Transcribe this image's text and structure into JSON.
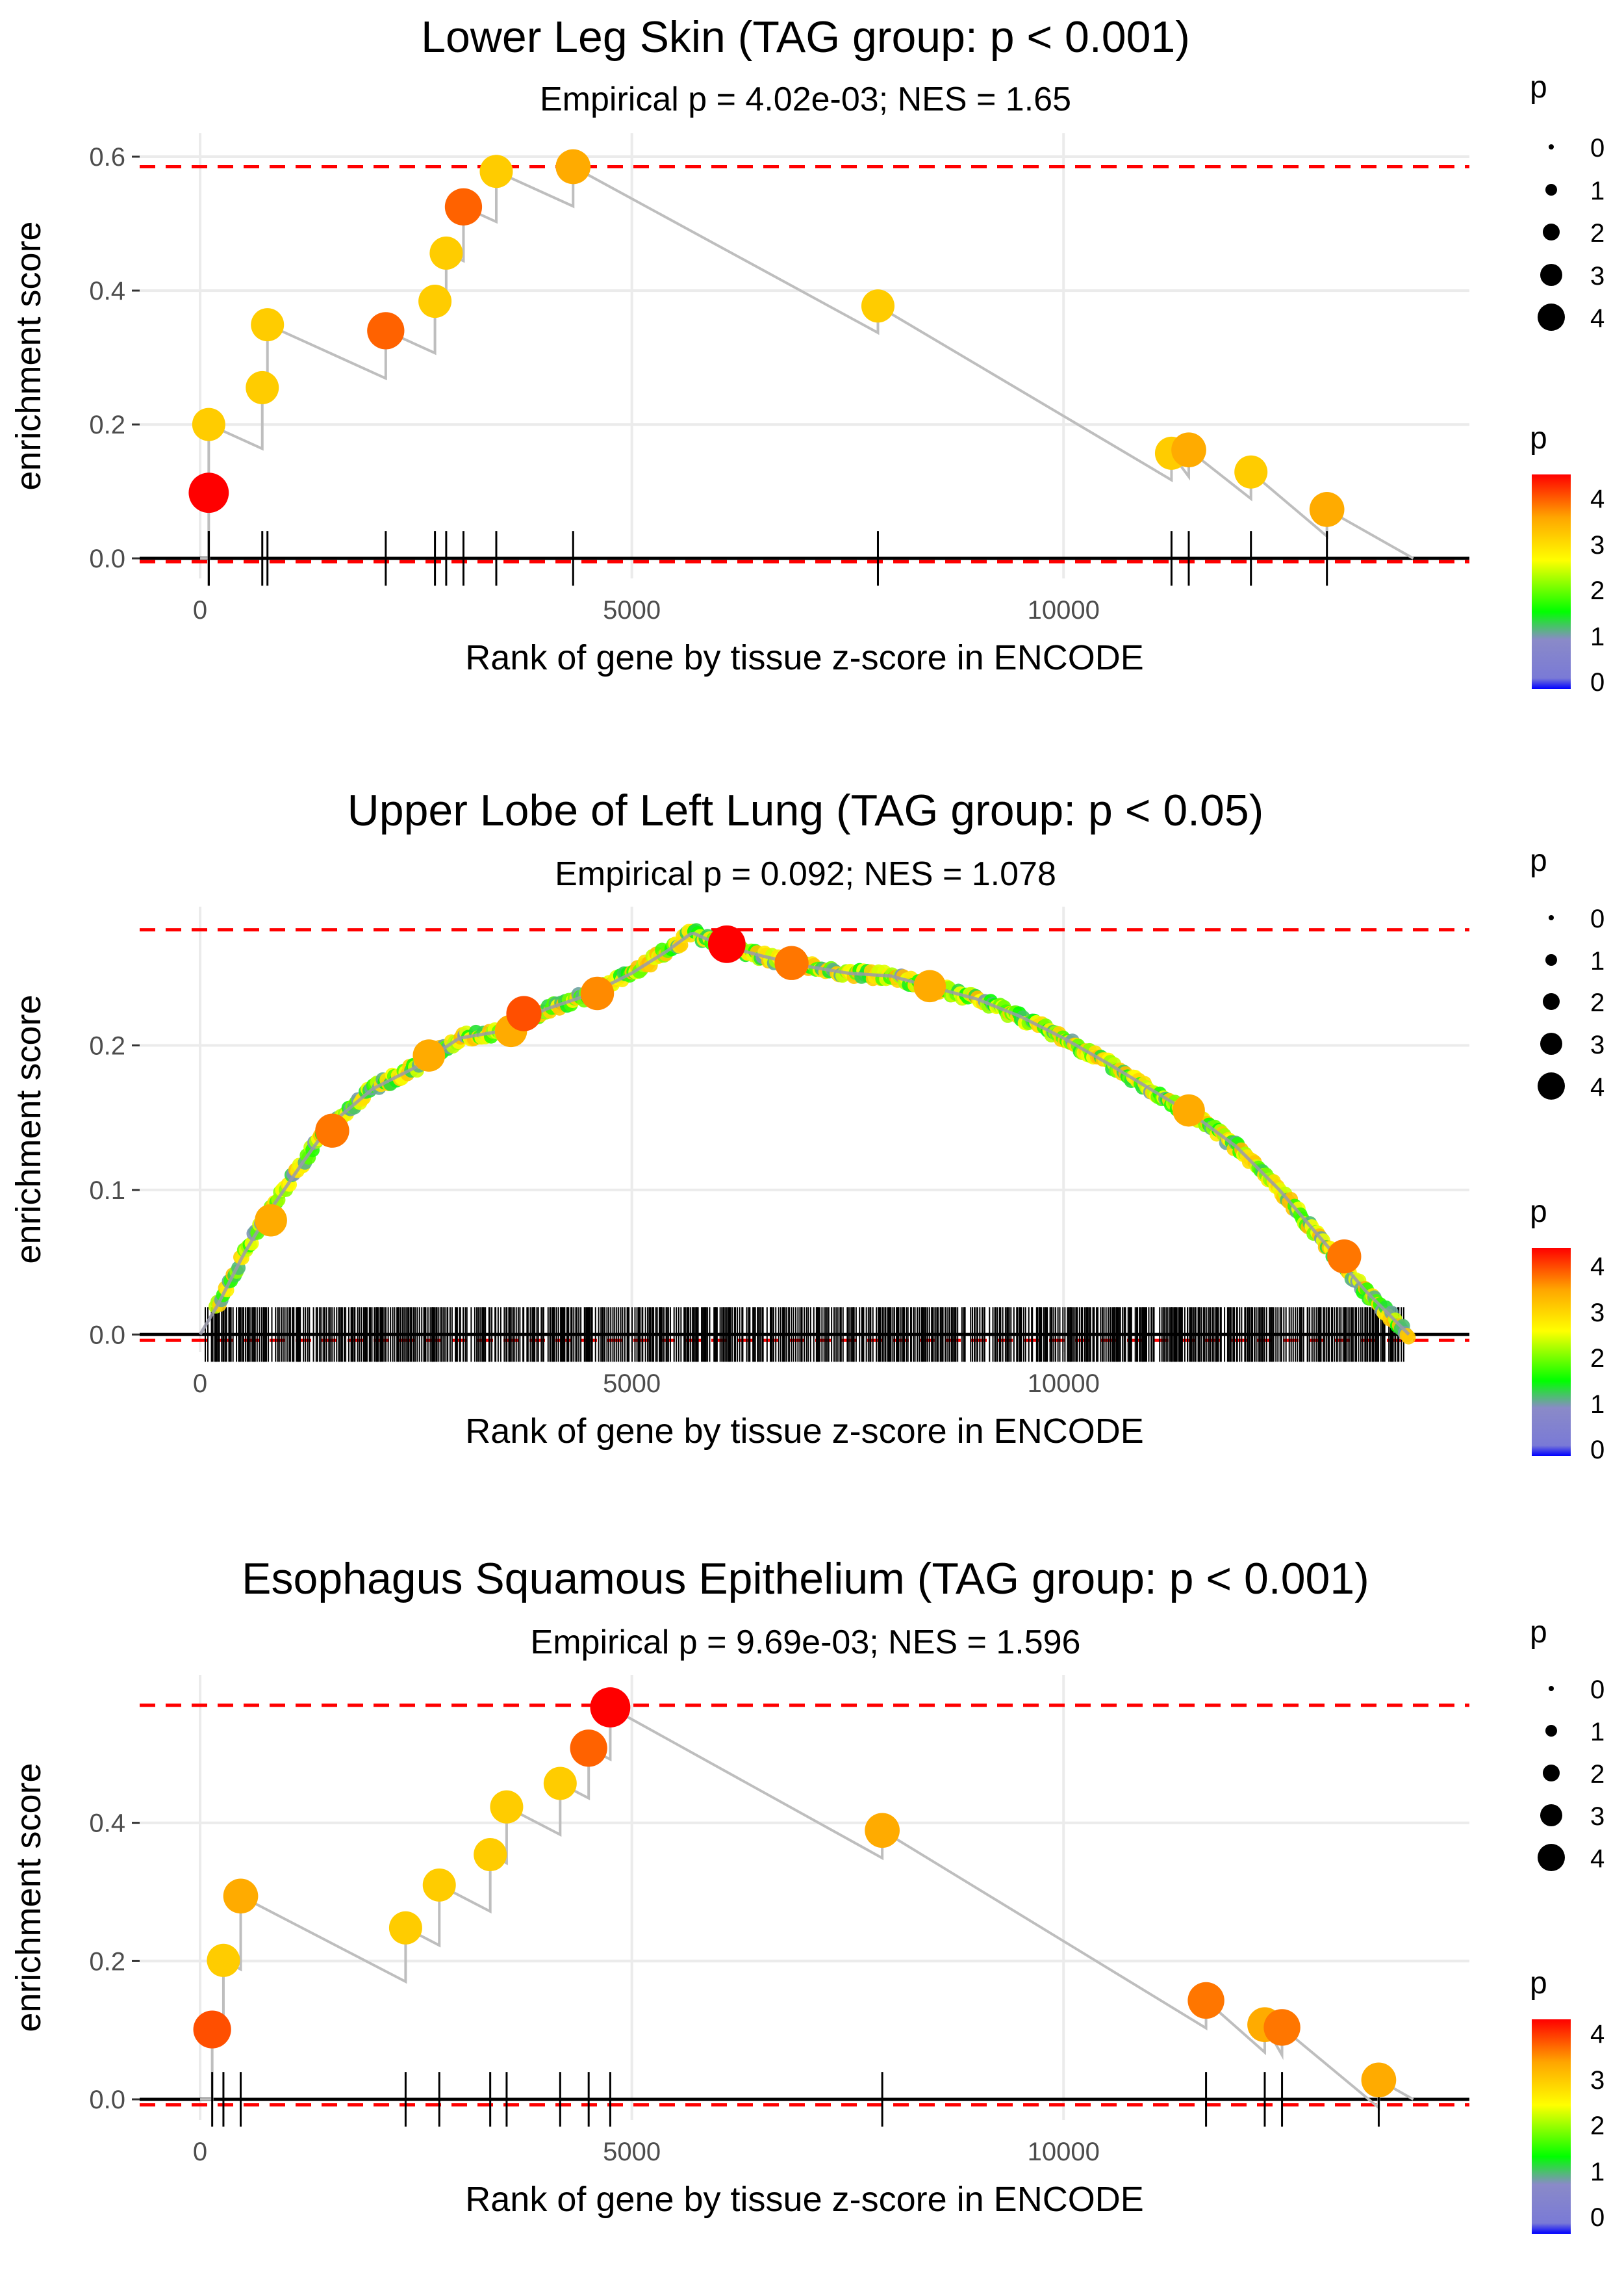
{
  "panels": [
    {
      "title": "Lower Leg Skin (TAG group: p < 0.001)",
      "subtitle": "Empirical p = 4.02e-03; NES = 1.65"
    },
    {
      "title": "Upper Lobe of Left Lung (TAG group: p < 0.05)",
      "subtitle": "Empirical p = 0.092; NES = 1.078"
    },
    {
      "title": "Esophagus Squamous Epithelium (TAG group: p < 0.001)",
      "subtitle": "Empirical p = 9.69e-03; NES = 1.596"
    }
  ],
  "legend": {
    "size_title": "p",
    "size_labels": [
      "0",
      "1",
      "2",
      "3",
      "4"
    ],
    "color_title": "p",
    "color_labels": [
      "4",
      "3",
      "2",
      "1",
      "0"
    ],
    "gradient_colors": [
      "#0000ff",
      "#8a8ac8",
      "#00ff00",
      "#ffff00",
      "#ffa500",
      "#ff0000"
    ]
  },
  "colors": {
    "curve": "#bebebe",
    "max_line": "#ff0000",
    "axis": "#000000",
    "grid": "#ebebeb"
  },
  "chart_data": [
    {
      "type": "scatter",
      "title": "Lower Leg Skin (TAG group: p < 0.001)",
      "subtitle": "Empirical p = 4.02e-03; NES = 1.65",
      "xlabel": "Rank of gene by tissue z-score in ENCODE",
      "ylabel": "enrichment score",
      "xlim": [
        -700,
        14700
      ],
      "ylim": [
        -0.03,
        0.635
      ],
      "x_ticks": [
        0,
        5000,
        10000
      ],
      "x_tick_labels": [
        "0",
        "5000",
        "10000"
      ],
      "y_ticks": [
        0,
        0.2,
        0.4,
        0.6
      ],
      "y_tick_labels": [
        "0.0",
        "0.2",
        "0.4",
        "0.6"
      ],
      "max_es": 0.585,
      "min_es": -0.005,
      "x_end": 14050,
      "points": [
        {
          "x": 100,
          "y": 0.098,
          "p": 4.2
        },
        {
          "x": 100,
          "y": 0.2,
          "p": 3.0
        },
        {
          "x": 720,
          "y": 0.255,
          "p": 3.0
        },
        {
          "x": 780,
          "y": 0.349,
          "p": 3.0
        },
        {
          "x": 2150,
          "y": 0.34,
          "p": 3.7
        },
        {
          "x": 2720,
          "y": 0.384,
          "p": 3.0
        },
        {
          "x": 2850,
          "y": 0.456,
          "p": 3.0
        },
        {
          "x": 3050,
          "y": 0.525,
          "p": 3.7
        },
        {
          "x": 3430,
          "y": 0.578,
          "p": 3.0
        },
        {
          "x": 4320,
          "y": 0.585,
          "p": 3.3
        },
        {
          "x": 7850,
          "y": 0.377,
          "p": 3.0
        },
        {
          "x": 11250,
          "y": 0.157,
          "p": 3.0
        },
        {
          "x": 11450,
          "y": 0.162,
          "p": 3.3
        },
        {
          "x": 12170,
          "y": 0.129,
          "p": 3.0
        },
        {
          "x": 13050,
          "y": 0.073,
          "p": 3.3
        }
      ]
    },
    {
      "type": "scatter",
      "title": "Upper Lobe of Left Lung (TAG group: p < 0.05)",
      "subtitle": "Empirical p = 0.092; NES = 1.078",
      "xlabel": "Rank of gene by tissue z-score in ENCODE",
      "ylabel": "enrichment score",
      "xlim": [
        -700,
        14700
      ],
      "ylim": [
        -0.012,
        0.296
      ],
      "x_ticks": [
        0,
        5000,
        10000
      ],
      "x_tick_labels": [
        "0",
        "5000",
        "10000"
      ],
      "y_ticks": [
        0,
        0.1,
        0.2
      ],
      "y_tick_labels": [
        "0.0",
        "0.1",
        "0.2"
      ],
      "max_es": 0.28,
      "min_es": -0.004,
      "x_end": 14050,
      "curve": [
        [
          0,
          0
        ],
        [
          200,
          0.02
        ],
        [
          500,
          0.055
        ],
        [
          800,
          0.085
        ],
        [
          1200,
          0.12
        ],
        [
          1500,
          0.145
        ],
        [
          2000,
          0.17
        ],
        [
          2500,
          0.185
        ],
        [
          3000,
          0.205
        ],
        [
          3500,
          0.21
        ],
        [
          4000,
          0.225
        ],
        [
          4500,
          0.235
        ],
        [
          5000,
          0.25
        ],
        [
          5400,
          0.265
        ],
        [
          5700,
          0.278
        ],
        [
          6000,
          0.27
        ],
        [
          6500,
          0.262
        ],
        [
          7000,
          0.255
        ],
        [
          7500,
          0.25
        ],
        [
          8000,
          0.248
        ],
        [
          8500,
          0.24
        ],
        [
          9000,
          0.232
        ],
        [
          9500,
          0.22
        ],
        [
          10000,
          0.205
        ],
        [
          10500,
          0.188
        ],
        [
          11000,
          0.17
        ],
        [
          11500,
          0.152
        ],
        [
          12000,
          0.13
        ],
        [
          12500,
          0.1
        ],
        [
          13000,
          0.065
        ],
        [
          13500,
          0.03
        ],
        [
          14000,
          0
        ]
      ],
      "highlight_points": [
        {
          "x": 820,
          "y": 0.079,
          "p": 3.3
        },
        {
          "x": 1530,
          "y": 0.141,
          "p": 3.6
        },
        {
          "x": 2650,
          "y": 0.193,
          "p": 3.3
        },
        {
          "x": 3600,
          "y": 0.21,
          "p": 3.3
        },
        {
          "x": 3750,
          "y": 0.222,
          "p": 3.8
        },
        {
          "x": 4600,
          "y": 0.236,
          "p": 3.5
        },
        {
          "x": 6100,
          "y": 0.27,
          "p": 4.2
        },
        {
          "x": 6850,
          "y": 0.257,
          "p": 3.6
        },
        {
          "x": 8450,
          "y": 0.241,
          "p": 3.3
        },
        {
          "x": 11450,
          "y": 0.155,
          "p": 3.3
        },
        {
          "x": 13250,
          "y": 0.054,
          "p": 3.6
        }
      ],
      "n_hits": "dense (~900 genes)"
    },
    {
      "type": "scatter",
      "title": "Esophagus Squamous Epithelium (TAG group: p < 0.001)",
      "subtitle": "Empirical p = 9.69e-03; NES = 1.596",
      "xlabel": "Rank of gene by tissue z-score in ENCODE",
      "ylabel": "enrichment score",
      "xlim": [
        -700,
        14700
      ],
      "ylim": [
        -0.03,
        0.614
      ],
      "x_ticks": [
        0,
        5000,
        10000
      ],
      "x_tick_labels": [
        "0",
        "5000",
        "10000"
      ],
      "y_ticks": [
        0,
        0.2,
        0.4
      ],
      "y_tick_labels": [
        "0.0",
        "0.2",
        "0.4"
      ],
      "max_es": 0.57,
      "min_es": -0.008,
      "x_end": 14050,
      "points": [
        {
          "x": 140,
          "y": 0.101,
          "p": 3.8
        },
        {
          "x": 270,
          "y": 0.201,
          "p": 3.0
        },
        {
          "x": 470,
          "y": 0.294,
          "p": 3.3
        },
        {
          "x": 2380,
          "y": 0.248,
          "p": 3.0
        },
        {
          "x": 2770,
          "y": 0.31,
          "p": 3.0
        },
        {
          "x": 3360,
          "y": 0.354,
          "p": 3.0
        },
        {
          "x": 3550,
          "y": 0.423,
          "p": 3.0
        },
        {
          "x": 4170,
          "y": 0.457,
          "p": 3.0
        },
        {
          "x": 4500,
          "y": 0.508,
          "p": 3.7
        },
        {
          "x": 4750,
          "y": 0.567,
          "p": 4.2
        },
        {
          "x": 7900,
          "y": 0.389,
          "p": 3.3
        },
        {
          "x": 11650,
          "y": 0.143,
          "p": 3.6
        },
        {
          "x": 12330,
          "y": 0.108,
          "p": 3.3
        },
        {
          "x": 12530,
          "y": 0.104,
          "p": 3.6
        },
        {
          "x": 13650,
          "y": 0.028,
          "p": 3.3
        }
      ]
    }
  ]
}
